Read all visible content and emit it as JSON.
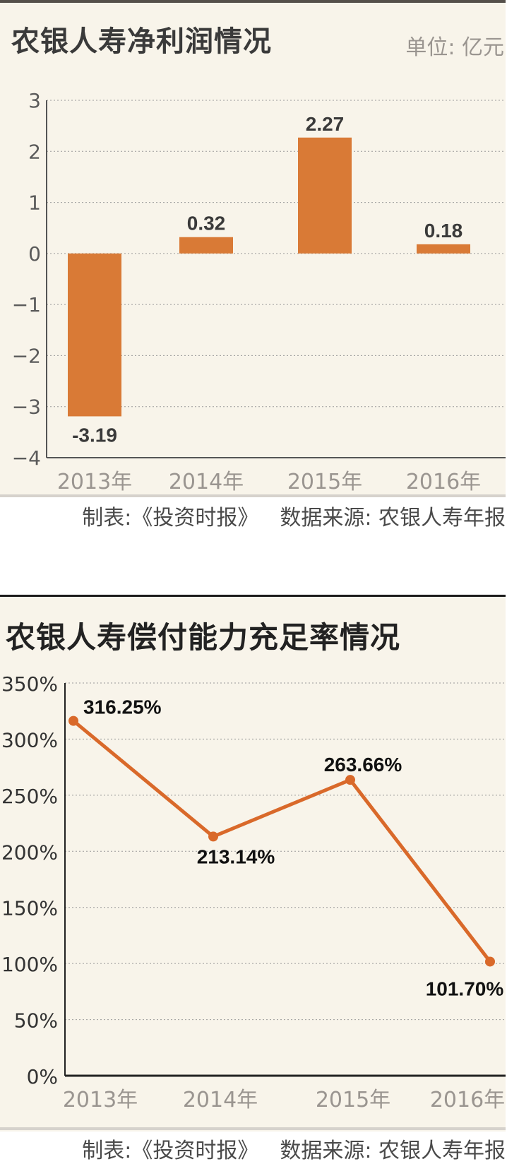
{
  "charts": [
    {
      "title": "农银人寿净利润情况",
      "unit": "单位: 亿元",
      "footer_maker": "制表:《投资时报》",
      "footer_source": "数据来源: 农银人寿年报",
      "color": "#d97a36"
    },
    {
      "title": "农银人寿偿付能力充足率情况",
      "footer_maker": "制表:《投资时报》",
      "footer_source": "数据来源: 农银人寿年报",
      "color": "#d9692a"
    }
  ],
  "chart_data": [
    {
      "type": "bar",
      "title": "农银人寿净利润情况",
      "categories": [
        "2013年",
        "2014年",
        "2015年",
        "2016年"
      ],
      "values": [
        -3.19,
        0.32,
        2.27,
        0.18
      ],
      "labels": [
        "-3.19",
        "0.32",
        "2.27",
        "0.18"
      ],
      "yticks": [
        3,
        2,
        1,
        0,
        -1,
        -2,
        -3,
        -4
      ],
      "ytick_labels": [
        "3",
        "2",
        "1",
        "0",
        "−1",
        "−2",
        "−3",
        "−4"
      ],
      "ylim": [
        -4,
        3
      ],
      "grid": true
    },
    {
      "type": "line",
      "title": "农银人寿偿付能力充足率情况",
      "categories": [
        "2013年",
        "2014年",
        "2015年",
        "2016年"
      ],
      "values": [
        316.25,
        213.14,
        263.66,
        101.7
      ],
      "labels": [
        "316.25%",
        "213.14%",
        "263.66%",
        "101.70%"
      ],
      "yticks": [
        350,
        300,
        250,
        200,
        150,
        100,
        50,
        0
      ],
      "ytick_labels": [
        "350%",
        "300%",
        "250%",
        "200%",
        "150%",
        "100%",
        "50%",
        "0%"
      ],
      "ylim": [
        0,
        350
      ],
      "grid": true
    }
  ]
}
